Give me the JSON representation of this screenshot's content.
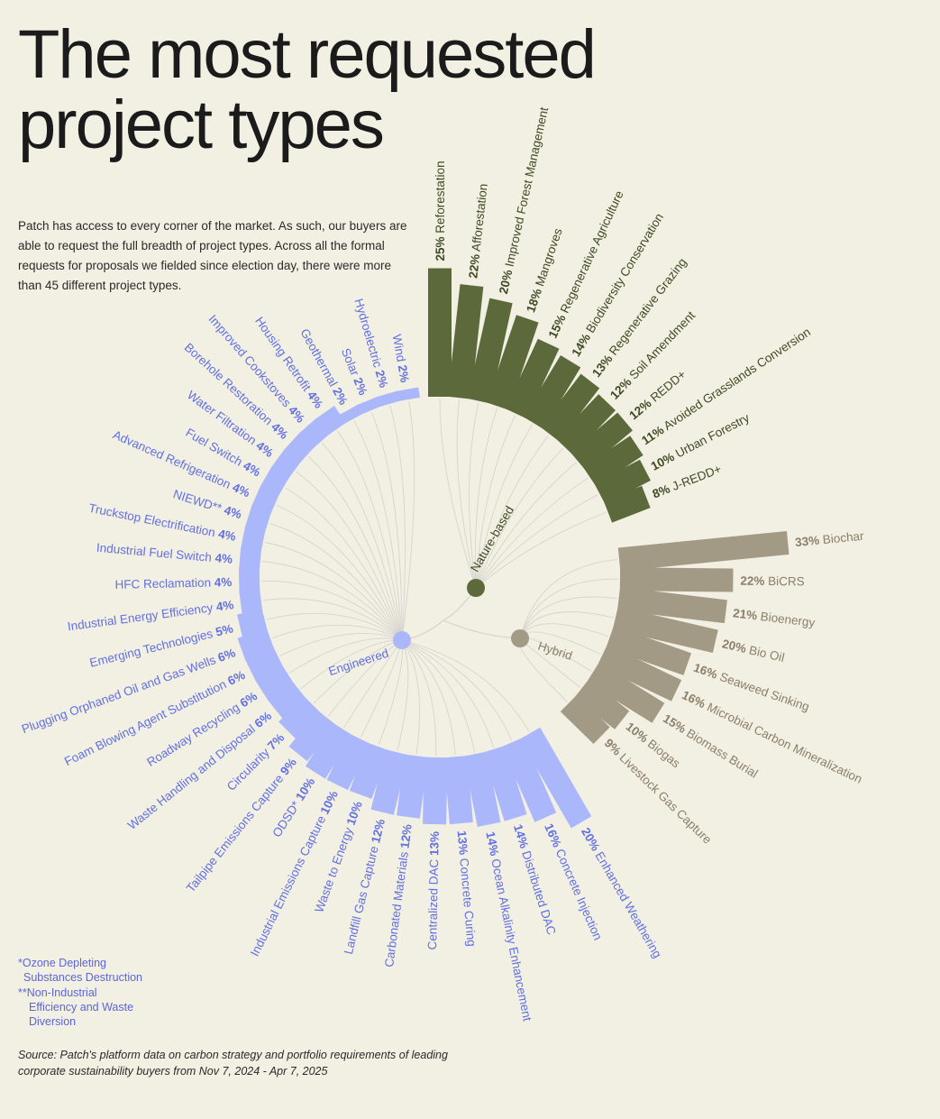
{
  "header": {
    "title": "The most requested\nproject types",
    "intro": "Patch has access to every corner of the market. As such, our buyers are able to request the full breadth of project types. Across all the formal requests for proposals we fielded since election day, there were more than 45 different project types."
  },
  "footnotes": {
    "odsd_line1": "*Ozone Depleting",
    "odsd_line2": "Substances Destruction",
    "niewd_line1": "**Non-Industrial",
    "niewd_line2": "Efficiency and Waste",
    "niewd_line3": "Diversion"
  },
  "source": "Source: Patch's platform data on carbon strategy and portfolio requirements of leading corporate sustainability buyers from Nov 7, 2024 - Apr 7, 2025",
  "colors": {
    "nature": "#5c6a3b",
    "nature_text": "#3f4a22",
    "hybrid": "#a39a85",
    "hybrid_text": "#8a7f69",
    "engineered": "#abb7fb",
    "engineered_text": "#6270e2",
    "links": "#d6d4cf"
  },
  "chart_data": {
    "type": "radial-bar",
    "groups": [
      {
        "name": "Nature-based",
        "categories": [
          "Reforestation",
          "Afforestation",
          "Improved Forest Management",
          "Mangroves",
          "Regenerative Agriculture",
          "Biodiversity Conservation",
          "Regenerative Grazing",
          "Soil Amendment",
          "REDD+",
          "Avoided Grasslands Conversion",
          "Urban Forestry",
          "J-REDD+"
        ],
        "values": [
          25,
          22,
          20,
          18,
          15,
          14,
          13,
          12,
          12,
          11,
          10,
          8
        ]
      },
      {
        "name": "Hybrid",
        "categories": [
          "Biochar",
          "BiCRS",
          "Bioenergy",
          "Bio Oil",
          "Seaweed Sinking",
          "Microbial Carbon Mineralization",
          "Biomass Burial",
          "Biogas",
          "Livestock Gas Capture"
        ],
        "values": [
          33,
          22,
          21,
          20,
          16,
          16,
          15,
          10,
          9
        ]
      },
      {
        "name": "Engineered",
        "categories": [
          "Enhanced Weathering",
          "Concrete Injection",
          "Distributed DAC",
          "Ocean Alkalinity Enhancement",
          "Concrete Curing",
          "Centralized DAC",
          "Carbonated Materials",
          "Landfill Gas Capture",
          "Waste to Energy",
          "Industrial Emissions Capture",
          "ODSD*",
          "Tailpipe Emissions Capture",
          "Circularity",
          "Waste Handling and Disposal",
          "Roadway Recycling",
          "Foam Blowing Agent Substitution",
          "Plugging Orphaned Oil and Gas Wells",
          "Emerging Technologies",
          "Industrial Energy Efficiency",
          "HFC Reclamation",
          "Industrial Fuel Switch",
          "Truckstop Electrification",
          "NIEWD**",
          "Advanced Refrigeration",
          "Fuel Switch",
          "Water Filtration",
          "Borehole Restoration",
          "Improved Cookstoves",
          "Housing Retrofit",
          "Geothermal",
          "Solar",
          "Hydroelectric",
          "Wind"
        ],
        "values": [
          20,
          16,
          14,
          14,
          13,
          13,
          12,
          12,
          10,
          10,
          10,
          9,
          7,
          6,
          6,
          6,
          6,
          5,
          4,
          4,
          4,
          4,
          4,
          4,
          4,
          4,
          4,
          4,
          4,
          2,
          2,
          2,
          2
        ]
      }
    ]
  }
}
